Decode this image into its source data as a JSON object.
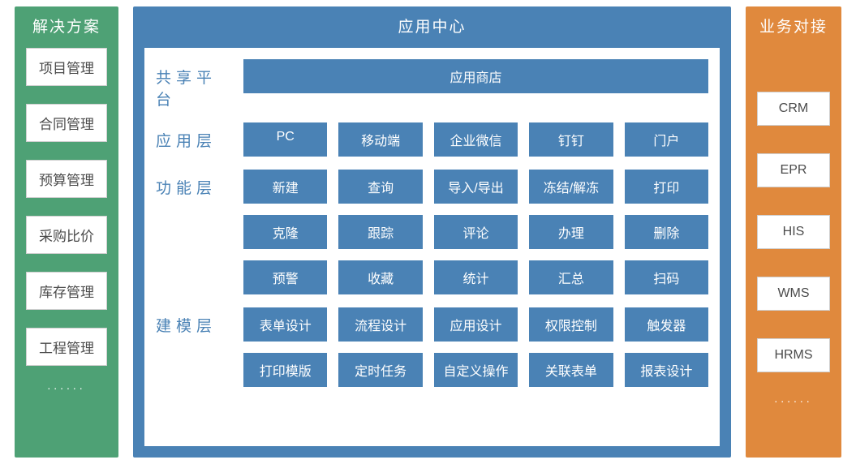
{
  "colors": {
    "green": "#4ea175",
    "blue": "#4a82b5",
    "orange": "#e0893d",
    "white": "#ffffff",
    "text_gray": "#4b4b4b",
    "border_gray": "#cfcfcf"
  },
  "left": {
    "title": "解决方案",
    "items": [
      "项目管理",
      "合同管理",
      "预算管理",
      "采购比价",
      "库存管理",
      "工程管理"
    ],
    "more": "......"
  },
  "center": {
    "title": "应用中心",
    "layers": [
      {
        "label": "共享平台",
        "rows": [
          {
            "cells": [
              "应用商店"
            ],
            "wide": true
          }
        ]
      },
      {
        "label": "应用层",
        "rows": [
          {
            "cells": [
              "PC",
              "移动端",
              "企业微信",
              "钉钉",
              "门户"
            ]
          }
        ]
      },
      {
        "label": "功能层",
        "rows": [
          {
            "cells": [
              "新建",
              "查询",
              "导入/导出",
              "冻结/解冻",
              "打印"
            ]
          },
          {
            "cells": [
              "克隆",
              "跟踪",
              "评论",
              "办理",
              "删除"
            ]
          },
          {
            "cells": [
              "预警",
              "收藏",
              "统计",
              "汇总",
              "扫码"
            ]
          }
        ]
      },
      {
        "label": "建模层",
        "rows": [
          {
            "cells": [
              "表单设计",
              "流程设计",
              "应用设计",
              "权限控制",
              "触发器"
            ]
          },
          {
            "cells": [
              "打印模版",
              "定时任务",
              "自定义操作",
              "关联表单",
              "报表设计"
            ]
          }
        ]
      }
    ]
  },
  "right": {
    "title": "业务对接",
    "items": [
      "CRM",
      "EPR",
      "HIS",
      "WMS",
      "HRMS"
    ],
    "more": "......"
  }
}
